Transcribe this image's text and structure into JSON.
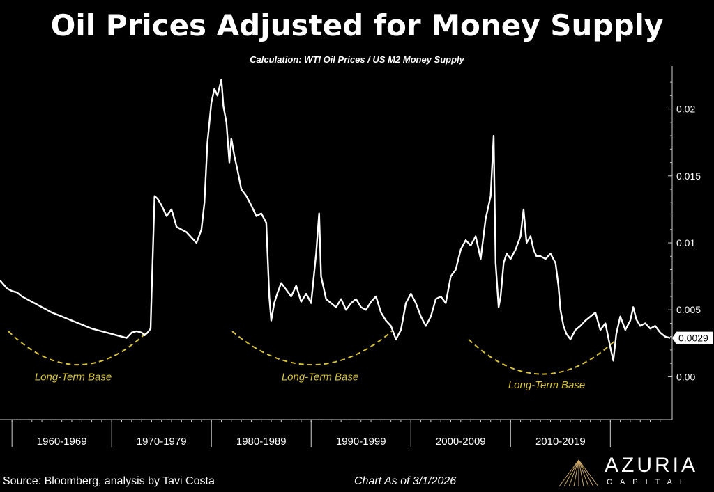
{
  "title": "Oil Prices Adjusted for Money Supply",
  "subtitle": "Calculation: WTI Oil Prices / US M2 Money Supply",
  "footer": {
    "source": "Source: Bloomberg, analysis by Tavi Costa",
    "as_of": "Chart As of 3/1/2026"
  },
  "logo": {
    "name": "AZURIA",
    "sub": "CAPITAL",
    "icon": "mountain-peak-icon"
  },
  "chart_data": {
    "type": "line",
    "title": "Oil Prices Adjusted for Money Supply",
    "subtitle": "Calculation: WTI Oil Prices / US M2 Money Supply",
    "xlabel": "",
    "ylabel": "",
    "xlim": [
      1958.8,
      2026.2
    ],
    "ylim": [
      -0.0032,
      0.0232
    ],
    "yticks": [
      0,
      0.005,
      0.01,
      0.015,
      0.02
    ],
    "ytick_labels": [
      "0.00",
      "0.005",
      "0.01",
      "0.015",
      "0.02"
    ],
    "x_decades": [
      "1960-1969",
      "1970-1979",
      "1980-1989",
      "1990-1999",
      "2000-2009",
      "2010-2019"
    ],
    "x_decade_starts": [
      1960,
      1970,
      1980,
      1990,
      2000,
      2010
    ],
    "last_value_label": "0.0029",
    "grid": false,
    "line_color": "#ffffff",
    "base_color": "#d8c23a",
    "series": [
      {
        "x": [
          1958.8,
          1959.5,
          1960.0,
          1960.5,
          1961.0,
          1962.0,
          1963.0,
          1964.0,
          1965.0,
          1966.0,
          1967.0,
          1968.0,
          1969.0,
          1969.5,
          1970.0,
          1970.5,
          1971.0,
          1971.5,
          1972.0,
          1972.5,
          1973.0,
          1973.3,
          1973.6,
          1973.9,
          1974.0,
          1974.3,
          1974.6,
          1975.0,
          1975.5,
          1976.0,
          1976.5,
          1977.0,
          1977.5,
          1978.0,
          1978.5,
          1979.0,
          1979.3,
          1979.6,
          1980.0,
          1980.3,
          1980.6,
          1981.0,
          1981.2,
          1981.5,
          1981.8,
          1982.0,
          1982.3,
          1982.6,
          1983.0,
          1983.5,
          1984.0,
          1984.5,
          1985.0,
          1985.5,
          1985.8,
          1986.0,
          1986.3,
          1986.6,
          1987.0,
          1987.5,
          1988.0,
          1988.5,
          1989.0,
          1989.5,
          1990.0,
          1990.5,
          1990.8,
          1991.0,
          1991.5,
          1992.0,
          1992.5,
          1993.0,
          1993.5,
          1994.0,
          1994.5,
          1995.0,
          1995.5,
          1996.0,
          1996.5,
          1997.0,
          1997.5,
          1998.0,
          1998.5,
          1999.0,
          1999.5,
          2000.0,
          2000.5,
          2001.0,
          2001.5,
          2002.0,
          2002.5,
          2003.0,
          2003.5,
          2004.0,
          2004.5,
          2005.0,
          2005.5,
          2006.0,
          2006.5,
          2007.0,
          2007.5,
          2008.0,
          2008.3,
          2008.5,
          2008.8,
          2009.0,
          2009.3,
          2009.6,
          2010.0,
          2010.5,
          2011.0,
          2011.3,
          2011.6,
          2012.0,
          2012.3,
          2012.6,
          2013.0,
          2013.5,
          2014.0,
          2014.5,
          2014.8,
          2015.0,
          2015.3,
          2015.6,
          2016.0,
          2016.5,
          2017.0,
          2017.5,
          2018.0,
          2018.5,
          2019.0,
          2019.5,
          2020.0,
          2020.3,
          2020.6,
          2021.0,
          2021.5,
          2022.0,
          2022.3,
          2022.6,
          2023.0,
          2023.5,
          2024.0,
          2024.5,
          2025.0,
          2025.5,
          2026.0
        ],
        "y": [
          0.0072,
          0.0066,
          0.0064,
          0.0063,
          0.006,
          0.0056,
          0.0052,
          0.0048,
          0.0045,
          0.0042,
          0.0039,
          0.0036,
          0.0034,
          0.0033,
          0.0032,
          0.0031,
          0.003,
          0.0029,
          0.0033,
          0.0034,
          0.0033,
          0.0031,
          0.0033,
          0.0036,
          0.0062,
          0.0135,
          0.0133,
          0.0128,
          0.012,
          0.0125,
          0.0112,
          0.011,
          0.0108,
          0.0104,
          0.01,
          0.011,
          0.013,
          0.0175,
          0.0205,
          0.0215,
          0.021,
          0.0222,
          0.0202,
          0.019,
          0.016,
          0.0178,
          0.0165,
          0.0155,
          0.014,
          0.0135,
          0.0128,
          0.012,
          0.0122,
          0.0115,
          0.006,
          0.0042,
          0.0055,
          0.0062,
          0.007,
          0.0065,
          0.006,
          0.0068,
          0.0056,
          0.0062,
          0.0055,
          0.0092,
          0.0122,
          0.0075,
          0.0058,
          0.0055,
          0.0052,
          0.0058,
          0.005,
          0.0055,
          0.0058,
          0.0052,
          0.005,
          0.0056,
          0.006,
          0.0048,
          0.0042,
          0.0038,
          0.0028,
          0.0035,
          0.0055,
          0.0062,
          0.0055,
          0.0045,
          0.0038,
          0.0045,
          0.0058,
          0.006,
          0.0055,
          0.0075,
          0.008,
          0.0095,
          0.0102,
          0.0098,
          0.0105,
          0.0088,
          0.0118,
          0.0135,
          0.018,
          0.0085,
          0.0052,
          0.006,
          0.0085,
          0.0092,
          0.0088,
          0.0095,
          0.0105,
          0.0125,
          0.01,
          0.0105,
          0.0095,
          0.009,
          0.009,
          0.0088,
          0.0092,
          0.0085,
          0.0068,
          0.005,
          0.0038,
          0.0032,
          0.0028,
          0.0035,
          0.0038,
          0.0042,
          0.0045,
          0.0048,
          0.0035,
          0.004,
          0.0022,
          0.0012,
          0.0032,
          0.0045,
          0.0035,
          0.0042,
          0.0052,
          0.0043,
          0.0038,
          0.004,
          0.0036,
          0.0038,
          0.0033,
          0.003,
          0.0029
        ]
      }
    ],
    "annotations": [
      {
        "text": "Long-Term Base"
      },
      {
        "text": "Long-Term Base"
      },
      {
        "text": "Long-Term Base"
      }
    ]
  }
}
